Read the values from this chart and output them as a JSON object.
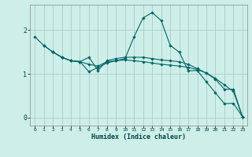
{
  "xlabel": "Humidex (Indice chaleur)",
  "bg_color": "#ceeee8",
  "grid_color": "#aacccc",
  "line_color": "#006666",
  "x_ticks": [
    0,
    1,
    2,
    3,
    4,
    5,
    6,
    7,
    8,
    9,
    10,
    11,
    12,
    13,
    14,
    15,
    16,
    17,
    18,
    19,
    20,
    21,
    22,
    23
  ],
  "y_ticks": [
    0,
    1,
    2
  ],
  "xlim": [
    -0.5,
    23.5
  ],
  "ylim": [
    -0.18,
    2.58
  ],
  "lines": [
    {
      "x": [
        0,
        1,
        2,
        3,
        4,
        5,
        6,
        7,
        8,
        9,
        10,
        11,
        12,
        13,
        14,
        15,
        16,
        17,
        18,
        19,
        20,
        21,
        22,
        23
      ],
      "y": [
        1.85,
        1.65,
        1.5,
        1.38,
        1.3,
        1.28,
        1.05,
        1.15,
        1.25,
        1.3,
        1.35,
        1.85,
        2.28,
        2.4,
        2.22,
        1.65,
        1.5,
        1.07,
        1.08,
        0.82,
        0.57,
        0.32,
        0.33,
        0.02
      ]
    },
    {
      "x": [
        1,
        2,
        3,
        4,
        5,
        6,
        7,
        8,
        9,
        10,
        11,
        12,
        13,
        14,
        15,
        16,
        17,
        18,
        19,
        20,
        21,
        22,
        23
      ],
      "y": [
        1.65,
        1.5,
        1.38,
        1.3,
        1.28,
        1.22,
        1.18,
        1.28,
        1.3,
        1.32,
        1.3,
        1.28,
        1.25,
        1.22,
        1.2,
        1.18,
        1.15,
        1.1,
        1.02,
        0.9,
        0.75,
        0.6,
        0.02
      ]
    },
    {
      "x": [
        2,
        3,
        4,
        5,
        6,
        7,
        8,
        9,
        10,
        11,
        12,
        13,
        14,
        15,
        16,
        17,
        18,
        19,
        20,
        21,
        22,
        23
      ],
      "y": [
        1.5,
        1.38,
        1.3,
        1.28,
        1.38,
        1.08,
        1.3,
        1.35,
        1.38,
        1.38,
        1.38,
        1.35,
        1.32,
        1.3,
        1.28,
        1.22,
        1.12,
        1.02,
        0.88,
        0.65,
        0.65,
        0.02
      ]
    }
  ]
}
